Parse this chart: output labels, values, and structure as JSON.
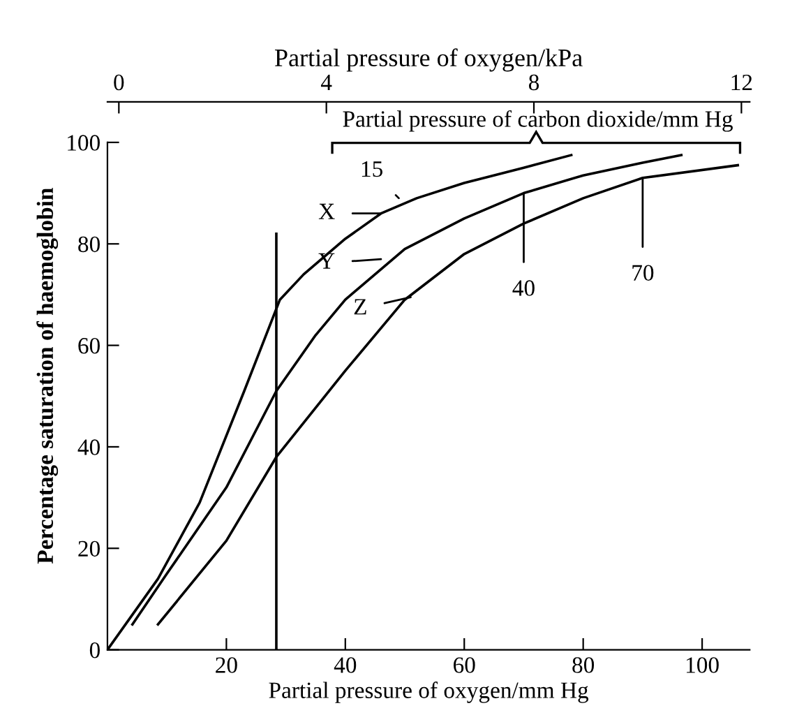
{
  "chart_data": {
    "type": "line",
    "xlabel": "Partial pressure of oxygen/mm Hg",
    "ylabel": "Percentage saturation of haemoglobin",
    "x2label": "Partial pressure of oxygen/kPa",
    "xlim": [
      0,
      108
    ],
    "xticks": [
      20,
      40,
      60,
      80,
      100
    ],
    "x2lim": [
      -0.22,
      12.16
    ],
    "x2ticks": [
      0,
      4,
      8,
      12
    ],
    "ylim": [
      0,
      108
    ],
    "yticks": [
      0,
      20,
      40,
      60,
      80,
      100
    ],
    "grid": false,
    "marker": "none",
    "line_style": "solid",
    "series": [
      {
        "color": "#000000",
        "x": [
          0,
          8.5,
          15.5,
          23,
          29,
          33,
          40,
          46,
          52,
          60,
          70,
          78
        ],
        "values": [
          0,
          14,
          29,
          51,
          69,
          74,
          81,
          86,
          89,
          92,
          95,
          97.5
        ]
      },
      {
        "color": "#000000",
        "x": [
          4.2,
          10,
          20,
          28.4,
          35,
          40,
          50,
          60,
          70,
          80,
          90,
          96.5
        ],
        "values": [
          5,
          15,
          32,
          51,
          62,
          69,
          79,
          85,
          90,
          93.5,
          96,
          97.5
        ]
      },
      {
        "color": "#000000",
        "x": [
          8.5,
          20,
          28.4,
          40,
          50,
          60,
          70,
          80,
          90,
          106
        ],
        "values": [
          5,
          21.5,
          38,
          55,
          69,
          78,
          84,
          89,
          93,
          95.5
        ]
      },
      {
        "color": "#000000",
        "x": [
          28.4,
          28.4
        ],
        "values": [
          0,
          82
        ]
      }
    ],
    "annotations": [
      {
        "text": "15",
        "x": 49,
        "y": 89
      },
      {
        "text": "X",
        "x": 46,
        "y": 86
      },
      {
        "text": "Y",
        "x": 46,
        "y": 77
      },
      {
        "text": "Z",
        "x": 51,
        "y": 69.5
      },
      {
        "text": "40",
        "x": 70,
        "y": 90
      },
      {
        "text": "70",
        "x": 90,
        "y": 93
      },
      "Partial pressure of carbon dioxide/mm Hg"
    ]
  }
}
